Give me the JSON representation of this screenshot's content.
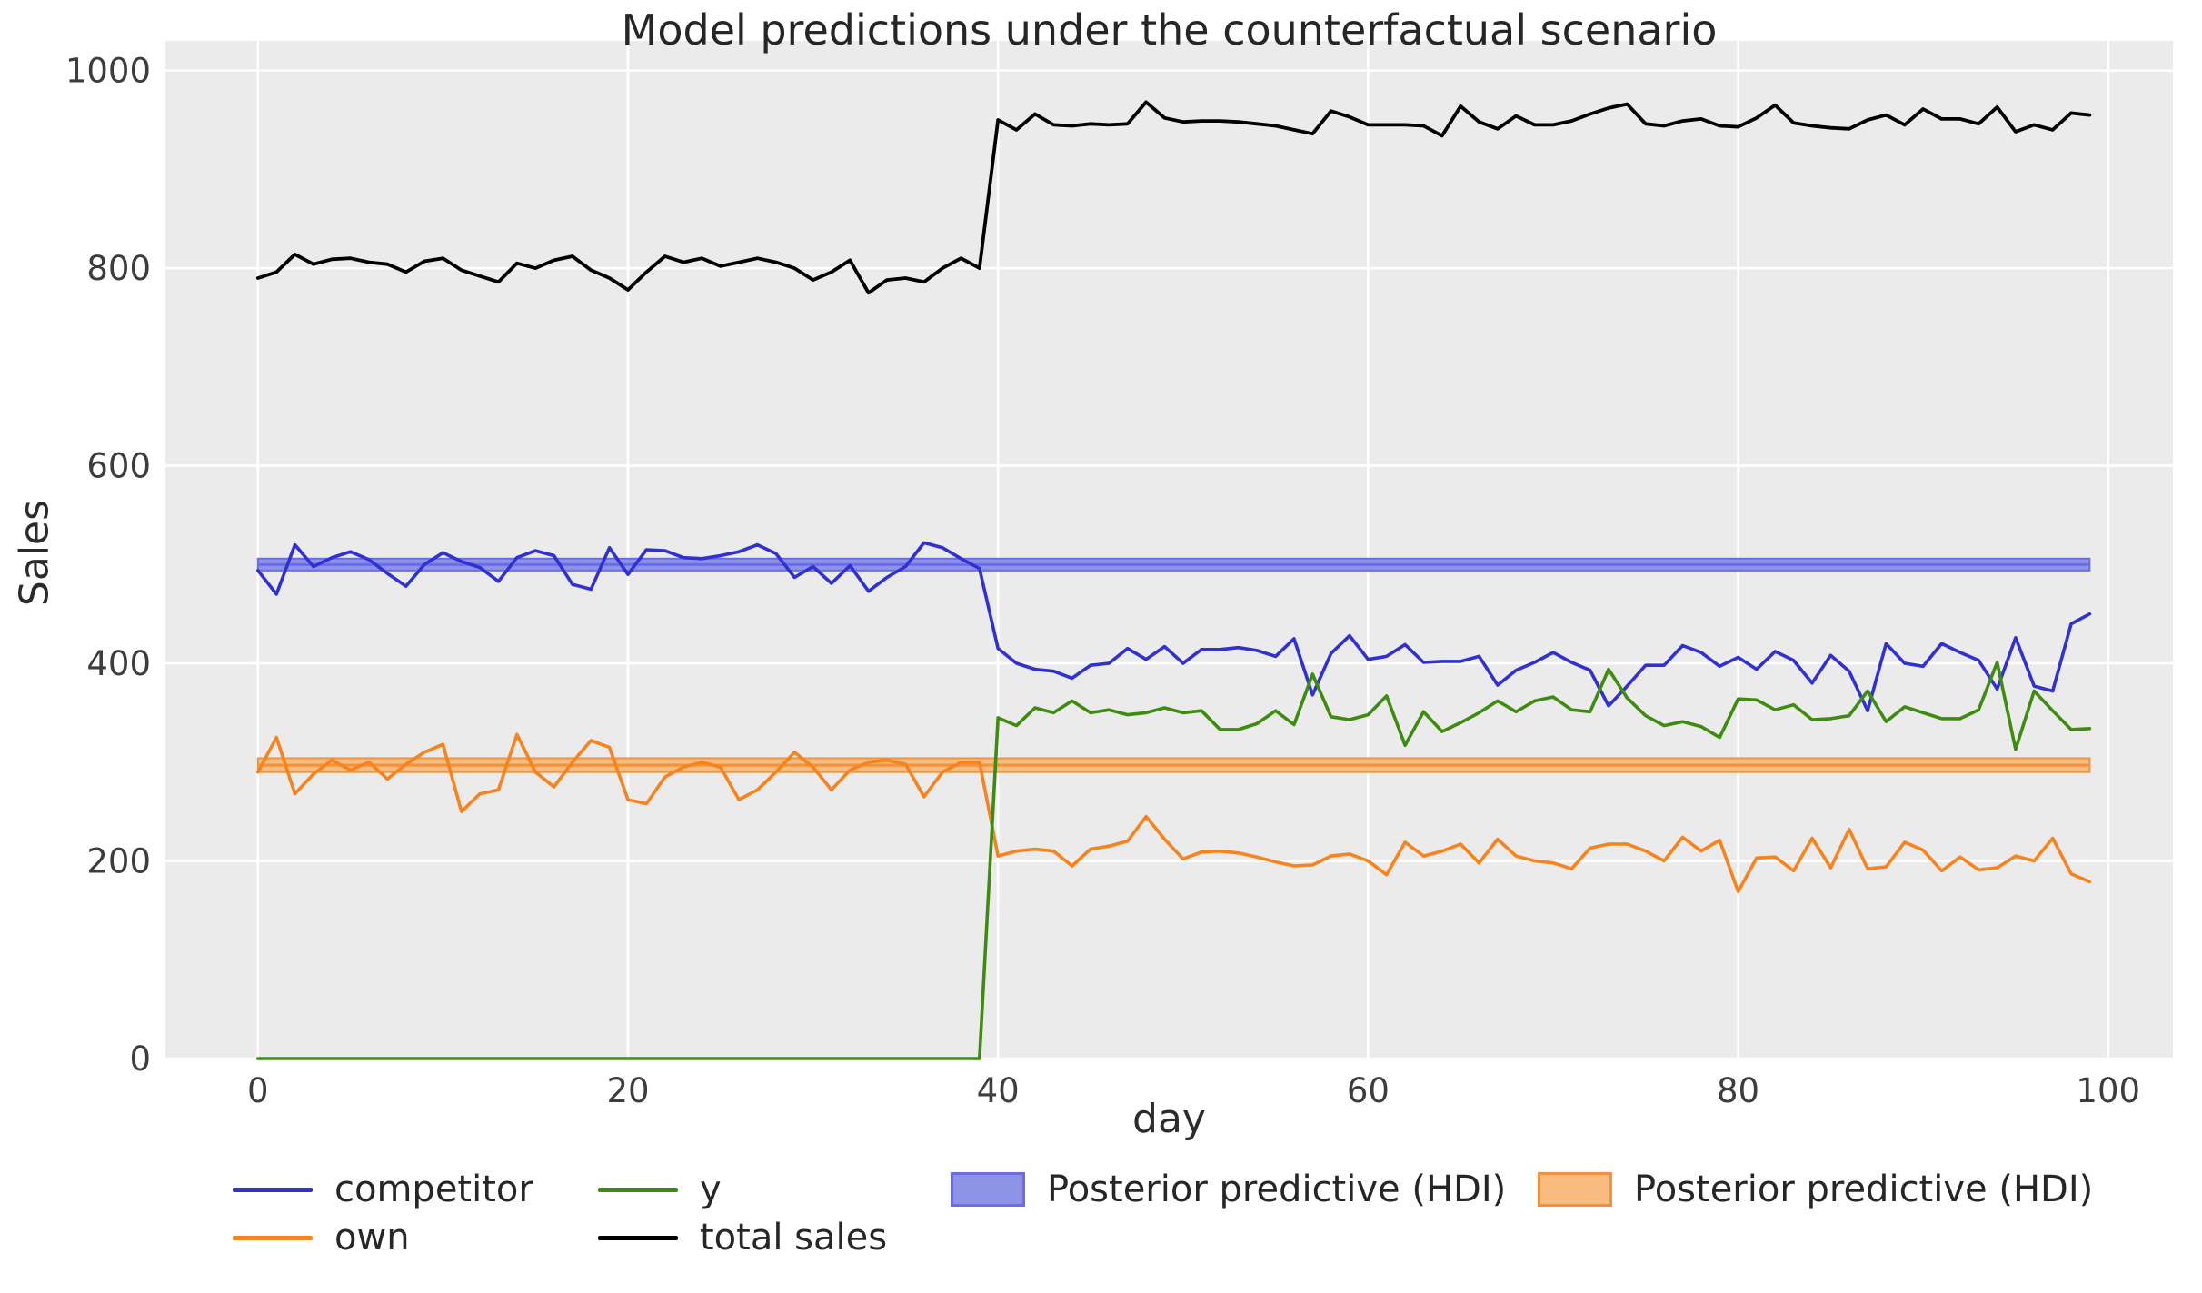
{
  "title": "Model predictions under the counterfactual scenario",
  "axes": {
    "x_label": "day",
    "y_label": "Sales",
    "x_ticks": [
      0,
      20,
      40,
      60,
      80,
      100
    ],
    "y_ticks": [
      0,
      200,
      400,
      600,
      800,
      1000
    ],
    "x_min": -5,
    "x_max": 103.5,
    "y_min": 0,
    "y_max": 1030,
    "background": "#ebebeb",
    "grid_color": "#ffffff",
    "tick_color": "#3d3d3d"
  },
  "legend": {
    "items": [
      {
        "label": "competitor",
        "type": "line",
        "swatch_color": "#3030d3"
      },
      {
        "label": "own",
        "type": "line",
        "swatch_color": "#f8831c"
      },
      {
        "label": "y",
        "type": "line",
        "swatch_color": "#3e8c0f"
      },
      {
        "label": "total sales",
        "type": "line",
        "swatch_color": "#000000"
      },
      {
        "label": "Posterior predictive (HDI)",
        "type": "patch",
        "swatch_color": "#8f93e8",
        "swatch_border": "#6a6ee2"
      },
      {
        "label": "Posterior predictive (HDI)",
        "type": "patch",
        "swatch_color": "#f8bb80",
        "swatch_border": "#ef943c"
      }
    ]
  },
  "chart_data": {
    "type": "line",
    "title": "Model predictions under the counterfactual scenario",
    "xlabel": "day",
    "ylabel": "Sales",
    "xlim": [
      -5,
      103.5
    ],
    "ylim": [
      0,
      1030
    ],
    "grid": true,
    "legend_position": "below",
    "x": [
      0,
      1,
      2,
      3,
      4,
      5,
      6,
      7,
      8,
      9,
      10,
      11,
      12,
      13,
      14,
      15,
      16,
      17,
      18,
      19,
      20,
      21,
      22,
      23,
      24,
      25,
      26,
      27,
      28,
      29,
      30,
      31,
      32,
      33,
      34,
      35,
      36,
      37,
      38,
      39,
      40,
      41,
      42,
      43,
      44,
      45,
      46,
      47,
      48,
      49,
      50,
      51,
      52,
      53,
      54,
      55,
      56,
      57,
      58,
      59,
      60,
      61,
      62,
      63,
      64,
      65,
      66,
      67,
      68,
      69,
      70,
      71,
      72,
      73,
      74,
      75,
      76,
      77,
      78,
      79,
      80,
      81,
      82,
      83,
      84,
      85,
      86,
      87,
      88,
      89,
      90,
      91,
      92,
      93,
      94,
      95,
      96,
      97,
      98,
      99
    ],
    "series": [
      {
        "name": "competitor",
        "color": "#3030d3",
        "values": [
          494,
          470,
          520,
          498,
          507,
          513,
          505,
          491,
          478,
          500,
          512,
          503,
          497,
          483,
          507,
          514,
          509,
          480,
          475,
          517,
          490,
          515,
          514,
          507,
          506,
          509,
          513,
          520,
          511,
          487,
          498,
          481,
          499,
          473,
          487,
          498,
          522,
          517,
          506,
          496,
          415,
          400,
          394,
          392,
          385,
          398,
          400,
          415,
          404,
          417,
          400,
          414,
          414,
          416,
          413,
          407,
          425,
          368,
          410,
          428,
          404,
          407,
          419,
          401,
          402,
          402,
          407,
          378,
          393,
          401,
          411,
          401,
          393,
          357,
          377,
          398,
          398,
          418,
          411,
          397,
          406,
          394,
          412,
          403,
          380,
          408,
          392,
          352,
          420,
          400,
          397,
          420,
          411,
          403,
          374,
          426,
          377,
          372,
          440,
          450
        ]
      },
      {
        "name": "own",
        "color": "#f8831c",
        "values": [
          290,
          325,
          268,
          288,
          302,
          292,
          300,
          283,
          298,
          310,
          318,
          250,
          268,
          272,
          328,
          290,
          275,
          300,
          322,
          315,
          262,
          258,
          285,
          295,
          300,
          295,
          262,
          272,
          290,
          310,
          295,
          272,
          292,
          300,
          302,
          298,
          265,
          290,
          300,
          300,
          205,
          210,
          212,
          210,
          195,
          212,
          215,
          220,
          245,
          222,
          202,
          209,
          210,
          208,
          204,
          199,
          195,
          196,
          205,
          207,
          200,
          186,
          219,
          205,
          210,
          217,
          198,
          222,
          205,
          200,
          198,
          192,
          213,
          217,
          217,
          210,
          200,
          224,
          210,
          221,
          169,
          203,
          204,
          190,
          223,
          193,
          232,
          192,
          194,
          219,
          211,
          190,
          204,
          191,
          193,
          205,
          200,
          223,
          187,
          179
        ]
      },
      {
        "name": "y",
        "color": "#3e8c0f",
        "values": [
          0,
          0,
          0,
          0,
          0,
          0,
          0,
          0,
          0,
          0,
          0,
          0,
          0,
          0,
          0,
          0,
          0,
          0,
          0,
          0,
          0,
          0,
          0,
          0,
          0,
          0,
          0,
          0,
          0,
          0,
          0,
          0,
          0,
          0,
          0,
          0,
          0,
          0,
          0,
          0,
          345,
          337,
          355,
          350,
          362,
          350,
          353,
          348,
          350,
          355,
          350,
          352,
          333,
          333,
          339,
          352,
          338,
          389,
          346,
          343,
          348,
          367,
          317,
          351,
          331,
          340,
          350,
          362,
          351,
          362,
          366,
          353,
          351,
          394,
          365,
          347,
          337,
          341,
          336,
          325,
          364,
          363,
          353,
          358,
          343,
          344,
          347,
          372,
          341,
          356,
          350,
          344,
          344,
          353,
          401,
          313,
          372,
          352,
          333,
          334
        ]
      },
      {
        "name": "total sales",
        "color": "#000000",
        "values": [
          790,
          796,
          814,
          804,
          809,
          810,
          806,
          804,
          796,
          807,
          810,
          798,
          792,
          786,
          805,
          800,
          808,
          812,
          798,
          790,
          778,
          796,
          812,
          806,
          810,
          802,
          806,
          810,
          806,
          800,
          788,
          796,
          808,
          775,
          788,
          790,
          786,
          800,
          810,
          800,
          950,
          940,
          956,
          945,
          944,
          946,
          945,
          946,
          968,
          952,
          948,
          949,
          949,
          948,
          946,
          944,
          940,
          936,
          959,
          953,
          945,
          945,
          945,
          944,
          934,
          964,
          948,
          941,
          954,
          945,
          945,
          949,
          956,
          962,
          966,
          946,
          944,
          949,
          951,
          944,
          943,
          952,
          965,
          947,
          944,
          942,
          941,
          950,
          955,
          945,
          961,
          951,
          951,
          946,
          963,
          938,
          945,
          940,
          957,
          955
        ]
      }
    ],
    "hdi_bands": [
      {
        "name": "Posterior predictive (HDI)",
        "series": "competitor",
        "lower": 494,
        "upper": 506,
        "mean": 500,
        "fill": "#8f93e8",
        "line_color": "#6a6ee2"
      },
      {
        "name": "Posterior predictive (HDI)",
        "series": "own",
        "lower": 290,
        "upper": 304,
        "mean": 297,
        "fill": "#f8bb80",
        "line_color": "#ef943c"
      }
    ]
  }
}
